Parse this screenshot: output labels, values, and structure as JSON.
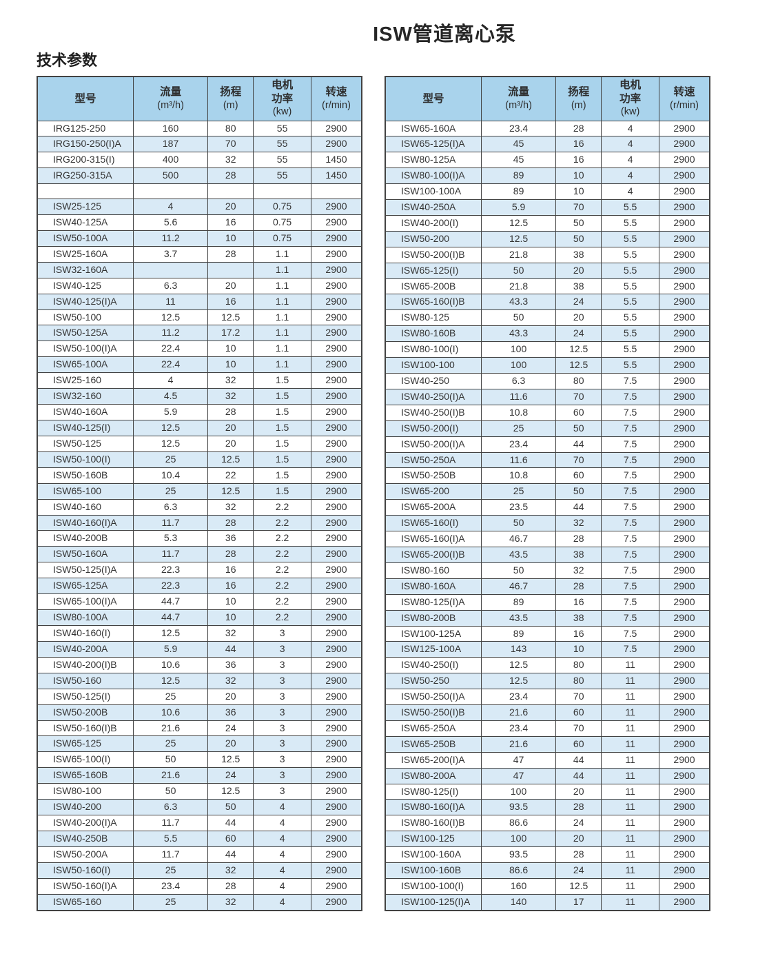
{
  "page": {
    "title": "ISW管道离心泵",
    "section_title": "技术参数"
  },
  "colors": {
    "header_bg": "#a9d3ec",
    "row_alt_bg": "#d9eaf6",
    "border": "#424242",
    "text": "#343434"
  },
  "table_columns": [
    {
      "label": "型号",
      "unit": ""
    },
    {
      "label": "流量",
      "unit": "(m³/h)"
    },
    {
      "label": "扬程",
      "unit": "(m)"
    },
    {
      "label": "电机\n功率",
      "unit": "(kw)"
    },
    {
      "label": "转速",
      "unit": "(r/min)"
    }
  ],
  "left_table_rows": [
    [
      "IRG125-250",
      "160",
      "80",
      "55",
      "2900"
    ],
    [
      "IRG150-250(I)A",
      "187",
      "70",
      "55",
      "2900"
    ],
    [
      "IRG200-315(I)",
      "400",
      "32",
      "55",
      "1450"
    ],
    [
      "IRG250-315A",
      "500",
      "28",
      "55",
      "1450"
    ],
    [
      "",
      "",
      "",
      "",
      ""
    ],
    [
      "ISW25-125",
      "4",
      "20",
      "0.75",
      "2900"
    ],
    [
      "ISW40-125A",
      "5.6",
      "16",
      "0.75",
      "2900"
    ],
    [
      "ISW50-100A",
      "11.2",
      "10",
      "0.75",
      "2900"
    ],
    [
      "ISW25-160A",
      "3.7",
      "28",
      "1.1",
      "2900"
    ],
    [
      "ISW32-160A",
      "",
      "",
      "1.1",
      "2900"
    ],
    [
      "ISW40-125",
      "6.3",
      "20",
      "1.1",
      "2900"
    ],
    [
      "ISW40-125(I)A",
      "11",
      "16",
      "1.1",
      "2900"
    ],
    [
      "ISW50-100",
      "12.5",
      "12.5",
      "1.1",
      "2900"
    ],
    [
      "ISW50-125A",
      "11.2",
      "17.2",
      "1.1",
      "2900"
    ],
    [
      "ISW50-100(I)A",
      "22.4",
      "10",
      "1.1",
      "2900"
    ],
    [
      "ISW65-100A",
      "22.4",
      "10",
      "1.1",
      "2900"
    ],
    [
      "ISW25-160",
      "4",
      "32",
      "1.5",
      "2900"
    ],
    [
      "ISW32-160",
      "4.5",
      "32",
      "1.5",
      "2900"
    ],
    [
      "ISW40-160A",
      "5.9",
      "28",
      "1.5",
      "2900"
    ],
    [
      "ISW40-125(I)",
      "12.5",
      "20",
      "1.5",
      "2900"
    ],
    [
      "ISW50-125",
      "12.5",
      "20",
      "1.5",
      "2900"
    ],
    [
      "ISW50-100(I)",
      "25",
      "12.5",
      "1.5",
      "2900"
    ],
    [
      "ISW50-160B",
      "10.4",
      "22",
      "1.5",
      "2900"
    ],
    [
      "ISW65-100",
      "25",
      "12.5",
      "1.5",
      "2900"
    ],
    [
      "ISW40-160",
      "6.3",
      "32",
      "2.2",
      "2900"
    ],
    [
      "ISW40-160(I)A",
      "11.7",
      "28",
      "2.2",
      "2900"
    ],
    [
      "ISW40-200B",
      "5.3",
      "36",
      "2.2",
      "2900"
    ],
    [
      "ISW50-160A",
      "11.7",
      "28",
      "2.2",
      "2900"
    ],
    [
      "ISW50-125(I)A",
      "22.3",
      "16",
      "2.2",
      "2900"
    ],
    [
      "ISW65-125A",
      "22.3",
      "16",
      "2.2",
      "2900"
    ],
    [
      "ISW65-100(I)A",
      "44.7",
      "10",
      "2.2",
      "2900"
    ],
    [
      "ISW80-100A",
      "44.7",
      "10",
      "2.2",
      "2900"
    ],
    [
      "ISW40-160(I)",
      "12.5",
      "32",
      "3",
      "2900"
    ],
    [
      "ISW40-200A",
      "5.9",
      "44",
      "3",
      "2900"
    ],
    [
      "ISW40-200(I)B",
      "10.6",
      "36",
      "3",
      "2900"
    ],
    [
      "ISW50-160",
      "12.5",
      "32",
      "3",
      "2900"
    ],
    [
      "ISW50-125(I)",
      "25",
      "20",
      "3",
      "2900"
    ],
    [
      "ISW50-200B",
      "10.6",
      "36",
      "3",
      "2900"
    ],
    [
      "ISW50-160(I)B",
      "21.6",
      "24",
      "3",
      "2900"
    ],
    [
      "ISW65-125",
      "25",
      "20",
      "3",
      "2900"
    ],
    [
      "ISW65-100(I)",
      "50",
      "12.5",
      "3",
      "2900"
    ],
    [
      "ISW65-160B",
      "21.6",
      "24",
      "3",
      "2900"
    ],
    [
      "ISW80-100",
      "50",
      "12.5",
      "3",
      "2900"
    ],
    [
      "ISW40-200",
      "6.3",
      "50",
      "4",
      "2900"
    ],
    [
      "ISW40-200(I)A",
      "11.7",
      "44",
      "4",
      "2900"
    ],
    [
      "ISW40-250B",
      "5.5",
      "60",
      "4",
      "2900"
    ],
    [
      "ISW50-200A",
      "11.7",
      "44",
      "4",
      "2900"
    ],
    [
      "ISW50-160(I)",
      "25",
      "32",
      "4",
      "2900"
    ],
    [
      "ISW50-160(I)A",
      "23.4",
      "28",
      "4",
      "2900"
    ],
    [
      "ISW65-160",
      "25",
      "32",
      "4",
      "2900"
    ]
  ],
  "right_table_rows": [
    [
      "ISW65-160A",
      "23.4",
      "28",
      "4",
      "2900"
    ],
    [
      "ISW65-125(I)A",
      "45",
      "16",
      "4",
      "2900"
    ],
    [
      "ISW80-125A",
      "45",
      "16",
      "4",
      "2900"
    ],
    [
      "ISW80-100(I)A",
      "89",
      "10",
      "4",
      "2900"
    ],
    [
      "ISW100-100A",
      "89",
      "10",
      "4",
      "2900"
    ],
    [
      "ISW40-250A",
      "5.9",
      "70",
      "5.5",
      "2900"
    ],
    [
      "ISW40-200(I)",
      "12.5",
      "50",
      "5.5",
      "2900"
    ],
    [
      "ISW50-200",
      "12.5",
      "50",
      "5.5",
      "2900"
    ],
    [
      "ISW50-200(I)B",
      "21.8",
      "38",
      "5.5",
      "2900"
    ],
    [
      "ISW65-125(I)",
      "50",
      "20",
      "5.5",
      "2900"
    ],
    [
      "ISW65-200B",
      "21.8",
      "38",
      "5.5",
      "2900"
    ],
    [
      "ISW65-160(I)B",
      "43.3",
      "24",
      "5.5",
      "2900"
    ],
    [
      "ISW80-125",
      "50",
      "20",
      "5.5",
      "2900"
    ],
    [
      "ISW80-160B",
      "43.3",
      "24",
      "5.5",
      "2900"
    ],
    [
      "ISW80-100(I)",
      "100",
      "12.5",
      "5.5",
      "2900"
    ],
    [
      "ISW100-100",
      "100",
      "12.5",
      "5.5",
      "2900"
    ],
    [
      "ISW40-250",
      "6.3",
      "80",
      "7.5",
      "2900"
    ],
    [
      "ISW40-250(I)A",
      "11.6",
      "70",
      "7.5",
      "2900"
    ],
    [
      "ISW40-250(I)B",
      "10.8",
      "60",
      "7.5",
      "2900"
    ],
    [
      "ISW50-200(I)",
      "25",
      "50",
      "7.5",
      "2900"
    ],
    [
      "ISW50-200(I)A",
      "23.4",
      "44",
      "7.5",
      "2900"
    ],
    [
      "ISW50-250A",
      "11.6",
      "70",
      "7.5",
      "2900"
    ],
    [
      "ISW50-250B",
      "10.8",
      "60",
      "7.5",
      "2900"
    ],
    [
      "ISW65-200",
      "25",
      "50",
      "7.5",
      "2900"
    ],
    [
      "ISW65-200A",
      "23.5",
      "44",
      "7.5",
      "2900"
    ],
    [
      "ISW65-160(I)",
      "50",
      "32",
      "7.5",
      "2900"
    ],
    [
      "ISW65-160(I)A",
      "46.7",
      "28",
      "7.5",
      "2900"
    ],
    [
      "ISW65-200(I)B",
      "43.5",
      "38",
      "7.5",
      "2900"
    ],
    [
      "ISW80-160",
      "50",
      "32",
      "7.5",
      "2900"
    ],
    [
      "ISW80-160A",
      "46.7",
      "28",
      "7.5",
      "2900"
    ],
    [
      "ISW80-125(I)A",
      "89",
      "16",
      "7.5",
      "2900"
    ],
    [
      "ISW80-200B",
      "43.5",
      "38",
      "7.5",
      "2900"
    ],
    [
      "ISW100-125A",
      "89",
      "16",
      "7.5",
      "2900"
    ],
    [
      "ISW125-100A",
      "143",
      "10",
      "7.5",
      "2900"
    ],
    [
      "ISW40-250(I)",
      "12.5",
      "80",
      "11",
      "2900"
    ],
    [
      "ISW50-250",
      "12.5",
      "80",
      "11",
      "2900"
    ],
    [
      "ISW50-250(I)A",
      "23.4",
      "70",
      "11",
      "2900"
    ],
    [
      "ISW50-250(I)B",
      "21.6",
      "60",
      "11",
      "2900"
    ],
    [
      "ISW65-250A",
      "23.4",
      "70",
      "11",
      "2900"
    ],
    [
      "ISW65-250B",
      "21.6",
      "60",
      "11",
      "2900"
    ],
    [
      "ISW65-200(I)A",
      "47",
      "44",
      "11",
      "2900"
    ],
    [
      "ISW80-200A",
      "47",
      "44",
      "11",
      "2900"
    ],
    [
      "ISW80-125(I)",
      "100",
      "20",
      "11",
      "2900"
    ],
    [
      "ISW80-160(I)A",
      "93.5",
      "28",
      "11",
      "2900"
    ],
    [
      "ISW80-160(I)B",
      "86.6",
      "24",
      "11",
      "2900"
    ],
    [
      "ISW100-125",
      "100",
      "20",
      "11",
      "2900"
    ],
    [
      "ISW100-160A",
      "93.5",
      "28",
      "11",
      "2900"
    ],
    [
      "ISW100-160B",
      "86.6",
      "24",
      "11",
      "2900"
    ],
    [
      "ISW100-100(I)",
      "160",
      "12.5",
      "11",
      "2900"
    ],
    [
      "ISW100-125(I)A",
      "140",
      "17",
      "11",
      "2900"
    ]
  ]
}
